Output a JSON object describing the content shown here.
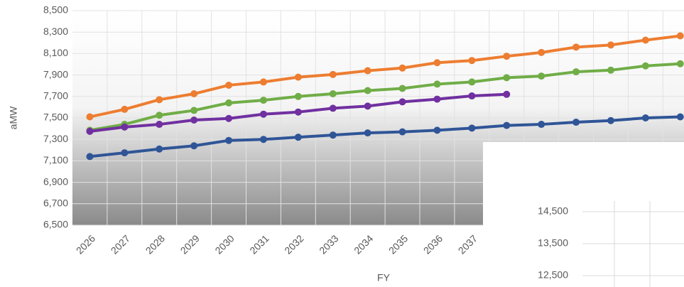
{
  "chart_data": [
    {
      "type": "line",
      "x_label": "FY",
      "y_label": "aMW",
      "categories": [
        "2026",
        "2027",
        "2028",
        "2029",
        "2030",
        "2031",
        "2032",
        "2033",
        "2034",
        "2035",
        "2036",
        "2037",
        null,
        null,
        null,
        null,
        null,
        null
      ],
      "ylim": [
        6500,
        8500
      ],
      "yticks": [
        {
          "value": 6500,
          "label": "6,500"
        },
        {
          "value": 6700,
          "label": "6,700"
        },
        {
          "value": 6900,
          "label": "6,900"
        },
        {
          "value": 7100,
          "label": "7,100"
        },
        {
          "value": 7300,
          "label": "7,300"
        },
        {
          "value": 7500,
          "label": "7,500"
        },
        {
          "value": 7700,
          "label": "7,700"
        },
        {
          "value": 7900,
          "label": "7,900"
        },
        {
          "value": 8100,
          "label": "8,100"
        },
        {
          "value": 8300,
          "label": "8,300"
        },
        {
          "value": 8500,
          "label": "8,500"
        }
      ],
      "grid": true,
      "series": [
        {
          "color": "#ed7d31",
          "values": [
            7510,
            7580,
            7670,
            7725,
            7805,
            7835,
            7880,
            7905,
            7940,
            7965,
            8015,
            8035,
            8075,
            8110,
            8160,
            8180,
            8225,
            8265
          ]
        },
        {
          "color": "#70ad47",
          "values": [
            7385,
            7440,
            7525,
            7570,
            7640,
            7665,
            7700,
            7725,
            7755,
            7775,
            7815,
            7835,
            7875,
            7890,
            7930,
            7945,
            7985,
            8005
          ]
        },
        {
          "color": "#7030a0",
          "values": [
            7375,
            7415,
            7440,
            7480,
            7495,
            7535,
            7555,
            7590,
            7610,
            7650,
            7675,
            7705,
            7720,
            null,
            null,
            null,
            null,
            null
          ]
        },
        {
          "color": "#2f5597",
          "values": [
            7140,
            7175,
            7210,
            7240,
            7290,
            7300,
            7320,
            7340,
            7360,
            7370,
            7385,
            7405,
            7430,
            7440,
            7460,
            7475,
            7500,
            7510
          ]
        }
      ]
    },
    {
      "type": "line",
      "ylim": [
        12500,
        14500
      ],
      "yticks": [
        {
          "value": 12500,
          "label": "12,500"
        },
        {
          "value": 13500,
          "label": "13,500"
        },
        {
          "value": 14500,
          "label": "14,500"
        }
      ],
      "grid": true
    }
  ]
}
